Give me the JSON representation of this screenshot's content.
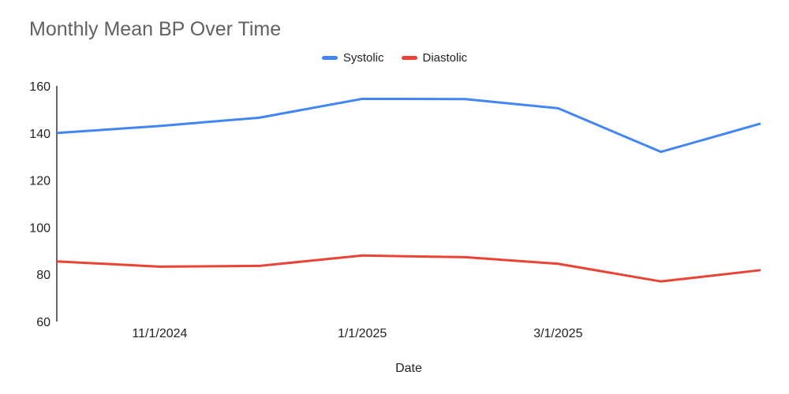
{
  "chart_data": {
    "type": "line",
    "title": "Monthly Mean BP Over Time",
    "xlabel": "Date",
    "x_dates": [
      "10/1/2024",
      "11/1/2024",
      "12/1/2024",
      "1/1/2025",
      "2/1/2025",
      "3/1/2025",
      "4/1/2025",
      "5/1/2025"
    ],
    "x_tick_labels": [
      "11/1/2024",
      "1/1/2025",
      "3/1/2025"
    ],
    "series": [
      {
        "name": "Systolic",
        "color": "#4285F4",
        "values": [
          140,
          143,
          146.5,
          154.5,
          154.4,
          150.5,
          132,
          144
        ]
      },
      {
        "name": "Diastolic",
        "color": "#EA4335",
        "values": [
          85.5,
          83.3,
          83.6,
          88,
          87.3,
          84.5,
          77,
          81.8
        ]
      }
    ],
    "ylim": [
      60,
      160
    ],
    "yticks": [
      60,
      80,
      100,
      120,
      140,
      160
    ],
    "grid": false,
    "legend_position": "top",
    "background": "#ffffff",
    "axis_color": "#333333",
    "tick_text_color": "#222222",
    "title_color": "#616161",
    "line_width": 3
  }
}
